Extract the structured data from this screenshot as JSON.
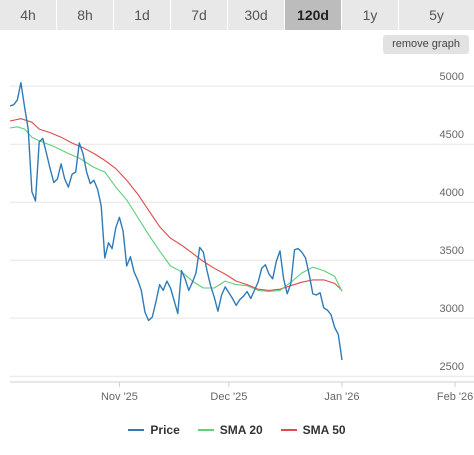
{
  "tabs": [
    {
      "label": "4h",
      "active": false
    },
    {
      "label": "8h",
      "active": false
    },
    {
      "label": "1d",
      "active": false
    },
    {
      "label": "7d",
      "active": false
    },
    {
      "label": "30d",
      "active": false
    },
    {
      "label": "120d",
      "active": true
    },
    {
      "label": "1y",
      "active": false
    },
    {
      "label": "5y",
      "active": false
    }
  ],
  "remove_graph_label": "remove graph",
  "colors": {
    "price": "#2f7bb8",
    "sma20": "#5fcf7a",
    "sma50": "#e04a4a",
    "grid": "#e6e6e6"
  },
  "chart_data": {
    "type": "line",
    "title": "",
    "xlabel": "",
    "ylabel": "",
    "ylim": [
      2450,
      5200
    ],
    "y_ticks": [
      2500,
      3000,
      3500,
      4000,
      4500,
      5000
    ],
    "x_ticks": [
      {
        "label": "Nov '25",
        "day": 22
      },
      {
        "label": "Dec '25",
        "day": 52
      },
      {
        "label": "Jan '26",
        "day": 83
      },
      {
        "label": "Feb '26",
        "day": 114
      }
    ],
    "x_range": [
      -8,
      117
    ],
    "legend": [
      "Price",
      "SMA 20",
      "SMA 50"
    ],
    "legend_position": "bottom",
    "series": [
      {
        "name": "Price",
        "color_key": "price",
        "points": [
          [
            -8,
            4830
          ],
          [
            -7,
            4840
          ],
          [
            -6,
            4880
          ],
          [
            -5,
            5030
          ],
          [
            -4,
            4820
          ],
          [
            -3,
            4630
          ],
          [
            -2,
            4090
          ],
          [
            -1,
            4010
          ],
          [
            0,
            4520
          ],
          [
            1,
            4550
          ],
          [
            2,
            4420
          ],
          [
            3,
            4290
          ],
          [
            4,
            4170
          ],
          [
            5,
            4200
          ],
          [
            6,
            4330
          ],
          [
            7,
            4200
          ],
          [
            8,
            4130
          ],
          [
            9,
            4240
          ],
          [
            10,
            4260
          ],
          [
            11,
            4510
          ],
          [
            12,
            4420
          ],
          [
            13,
            4260
          ],
          [
            14,
            4160
          ],
          [
            15,
            4190
          ],
          [
            16,
            4110
          ],
          [
            17,
            3970
          ],
          [
            18,
            3520
          ],
          [
            19,
            3650
          ],
          [
            20,
            3600
          ],
          [
            21,
            3780
          ],
          [
            22,
            3870
          ],
          [
            23,
            3750
          ],
          [
            24,
            3450
          ],
          [
            25,
            3530
          ],
          [
            26,
            3400
          ],
          [
            27,
            3330
          ],
          [
            28,
            3240
          ],
          [
            29,
            3050
          ],
          [
            30,
            2980
          ],
          [
            31,
            3010
          ],
          [
            32,
            3140
          ],
          [
            33,
            3290
          ],
          [
            34,
            3240
          ],
          [
            35,
            3320
          ],
          [
            36,
            3260
          ],
          [
            37,
            3150
          ],
          [
            38,
            3040
          ],
          [
            39,
            3410
          ],
          [
            40,
            3340
          ],
          [
            41,
            3240
          ],
          [
            42,
            3310
          ],
          [
            43,
            3390
          ],
          [
            44,
            3610
          ],
          [
            45,
            3570
          ],
          [
            46,
            3410
          ],
          [
            47,
            3280
          ],
          [
            48,
            3180
          ],
          [
            49,
            3060
          ],
          [
            50,
            3200
          ],
          [
            51,
            3270
          ],
          [
            52,
            3220
          ],
          [
            53,
            3170
          ],
          [
            54,
            3110
          ],
          [
            55,
            3160
          ],
          [
            56,
            3190
          ],
          [
            57,
            3230
          ],
          [
            58,
            3170
          ],
          [
            59,
            3240
          ],
          [
            60,
            3310
          ],
          [
            61,
            3430
          ],
          [
            62,
            3460
          ],
          [
            63,
            3380
          ],
          [
            64,
            3340
          ],
          [
            65,
            3490
          ],
          [
            66,
            3580
          ],
          [
            67,
            3340
          ],
          [
            68,
            3210
          ],
          [
            69,
            3300
          ],
          [
            70,
            3590
          ],
          [
            71,
            3600
          ],
          [
            72,
            3570
          ],
          [
            73,
            3520
          ],
          [
            74,
            3380
          ],
          [
            75,
            3210
          ],
          [
            76,
            3200
          ],
          [
            77,
            3220
          ],
          [
            78,
            3090
          ],
          [
            79,
            3070
          ],
          [
            80,
            3030
          ],
          [
            81,
            2920
          ],
          [
            82,
            2860
          ],
          [
            83,
            2640
          ]
        ]
      },
      {
        "name": "SMA 20",
        "color_key": "sma20",
        "points": [
          [
            -8,
            4640
          ],
          [
            -6,
            4650
          ],
          [
            -4,
            4630
          ],
          [
            -2,
            4560
          ],
          [
            0,
            4530
          ],
          [
            4,
            4480
          ],
          [
            8,
            4420
          ],
          [
            11,
            4380
          ],
          [
            15,
            4300
          ],
          [
            18,
            4260
          ],
          [
            21,
            4130
          ],
          [
            24,
            4020
          ],
          [
            27,
            3870
          ],
          [
            30,
            3720
          ],
          [
            33,
            3580
          ],
          [
            36,
            3450
          ],
          [
            39,
            3400
          ],
          [
            42,
            3320
          ],
          [
            45,
            3260
          ],
          [
            48,
            3260
          ],
          [
            51,
            3320
          ],
          [
            54,
            3290
          ],
          [
            57,
            3280
          ],
          [
            60,
            3240
          ],
          [
            63,
            3230
          ],
          [
            66,
            3240
          ],
          [
            69,
            3310
          ],
          [
            72,
            3390
          ],
          [
            75,
            3440
          ],
          [
            78,
            3410
          ],
          [
            81,
            3360
          ],
          [
            83,
            3230
          ]
        ]
      },
      {
        "name": "SMA 50",
        "color_key": "sma50",
        "points": [
          [
            -8,
            4700
          ],
          [
            -5,
            4720
          ],
          [
            -2,
            4690
          ],
          [
            0,
            4630
          ],
          [
            3,
            4600
          ],
          [
            6,
            4560
          ],
          [
            9,
            4510
          ],
          [
            12,
            4470
          ],
          [
            15,
            4420
          ],
          [
            18,
            4360
          ],
          [
            21,
            4290
          ],
          [
            24,
            4190
          ],
          [
            27,
            4070
          ],
          [
            30,
            3930
          ],
          [
            33,
            3790
          ],
          [
            36,
            3690
          ],
          [
            39,
            3630
          ],
          [
            42,
            3560
          ],
          [
            45,
            3490
          ],
          [
            48,
            3430
          ],
          [
            51,
            3380
          ],
          [
            54,
            3320
          ],
          [
            57,
            3290
          ],
          [
            60,
            3250
          ],
          [
            63,
            3240
          ],
          [
            66,
            3250
          ],
          [
            69,
            3280
          ],
          [
            72,
            3310
          ],
          [
            75,
            3330
          ],
          [
            78,
            3330
          ],
          [
            81,
            3300
          ],
          [
            83,
            3240
          ]
        ]
      }
    ]
  }
}
